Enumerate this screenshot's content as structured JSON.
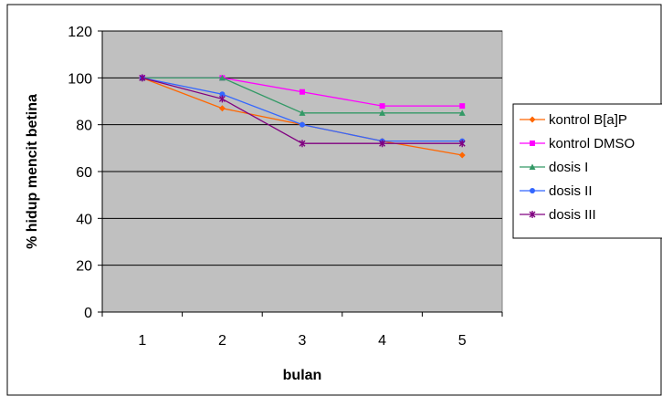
{
  "chart_data": {
    "type": "line",
    "title": "",
    "xlabel": "bulan",
    "ylabel": "% hidup mencit betina",
    "categories": [
      "1",
      "2",
      "3",
      "4",
      "5"
    ],
    "ylim": [
      0,
      120
    ],
    "yticks": [
      0,
      20,
      40,
      60,
      80,
      100,
      120
    ],
    "grid": true,
    "legend_position": "right",
    "plot_background": "#c0c0c0",
    "series": [
      {
        "name": "kontrol B[a]P",
        "values": [
          100,
          87,
          80,
          73,
          67
        ],
        "color": "#ff6600",
        "marker": "diamond"
      },
      {
        "name": "kontrol DMSO",
        "values": [
          100,
          100,
          94,
          88,
          88
        ],
        "color": "#ff00ff",
        "marker": "square"
      },
      {
        "name": "dosis I",
        "values": [
          100,
          100,
          85,
          85,
          85
        ],
        "color": "#339966",
        "marker": "triangle"
      },
      {
        "name": "dosis II",
        "values": [
          100,
          93,
          80,
          73,
          73
        ],
        "color": "#3366ff",
        "marker": "circle"
      },
      {
        "name": "dosis III",
        "values": [
          100,
          91,
          72,
          72,
          72
        ],
        "color": "#800080",
        "marker": "star"
      }
    ]
  }
}
